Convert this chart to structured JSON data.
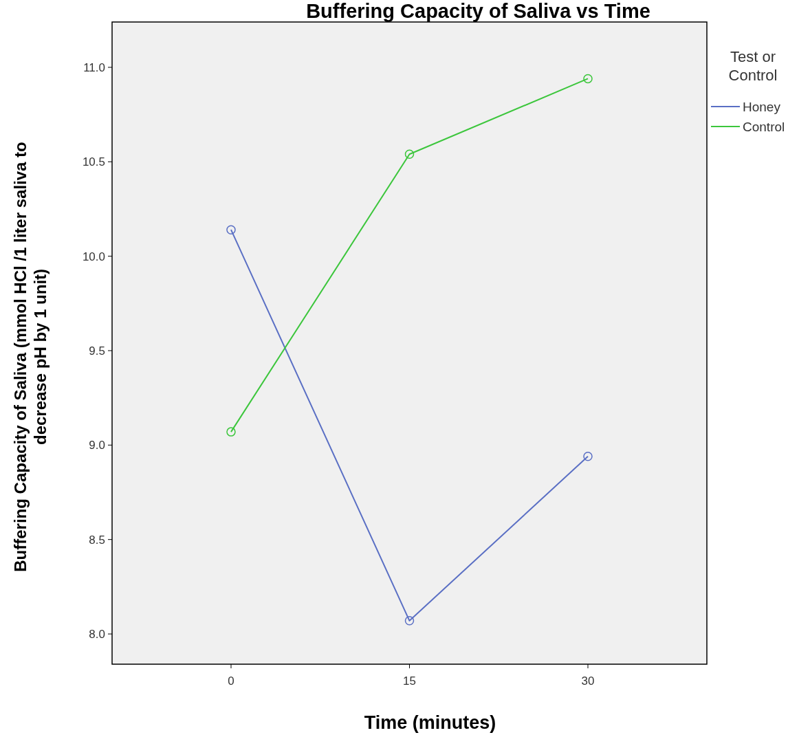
{
  "chart_data": {
    "type": "line",
    "title": "Buffering Capacity of Saliva vs Time",
    "xlabel": "Time (minutes)",
    "ylabel": "Buffering Capacity of Saliva (mmol HCl /1 liter saliva to\ndecrease pH by 1 unit)",
    "legend_title": "Test or\nControl",
    "x": [
      0,
      15,
      30
    ],
    "series": [
      {
        "name": "Honey",
        "color": "#5a6fc4",
        "values": [
          10.14,
          8.07,
          8.94
        ]
      },
      {
        "name": "Control",
        "color": "#3cc63c",
        "values": [
          9.07,
          10.54,
          10.94
        ]
      }
    ],
    "xlim": [
      -10,
      40
    ],
    "xticks": [
      0,
      15,
      30
    ],
    "ylim": [
      7.84,
      11.24
    ],
    "yticks": [
      {
        "value": 8,
        "label": "8.0"
      },
      {
        "value": 8.5,
        "label": "8.5"
      },
      {
        "value": 9,
        "label": "9.0"
      },
      {
        "value": 9.5,
        "label": "9.5"
      },
      {
        "value": 10,
        "label": "10.0"
      },
      {
        "value": 10.5,
        "label": "10.5"
      },
      {
        "value": 11,
        "label": "11.0"
      }
    ],
    "marker": "circle",
    "line_style": "solid",
    "grid": false,
    "legend": "top right"
  }
}
